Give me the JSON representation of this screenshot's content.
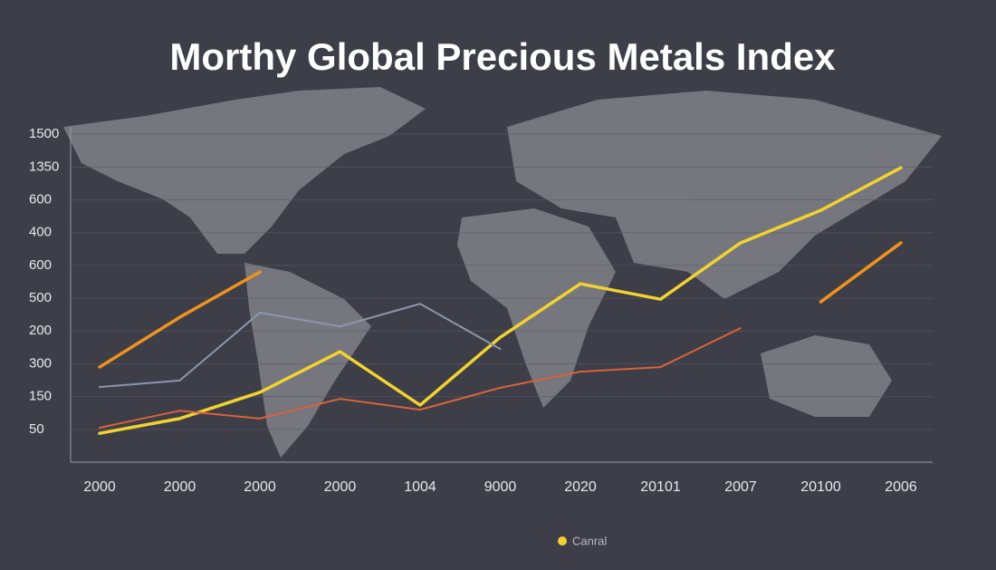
{
  "chart_data": {
    "type": "line",
    "title": "Morthy Global Precious Metals Index",
    "categories": [
      "2000",
      "2000",
      "2000",
      "2000",
      "1004",
      "9000",
      "2020",
      "20101",
      "2007",
      "20100",
      "2006"
    ],
    "ylim": [
      0,
      11
    ],
    "yticks": [
      {
        "value": 1,
        "label": "50"
      },
      {
        "value": 2,
        "label": "150"
      },
      {
        "value": 3,
        "label": "300"
      },
      {
        "value": 4,
        "label": "200"
      },
      {
        "value": 5,
        "label": "500"
      },
      {
        "value": 6,
        "label": "600"
      },
      {
        "value": 7,
        "label": "400"
      },
      {
        "value": 8,
        "label": "600"
      },
      {
        "value": 9,
        "label": "1350"
      },
      {
        "value": 10,
        "label": "1500"
      }
    ],
    "grid": true,
    "series": [
      {
        "name": "Canral",
        "color": "#f2d230",
        "values": [
          0.88,
          1.33,
          2.13,
          3.37,
          1.74,
          3.81,
          5.44,
          4.97,
          6.69,
          7.68,
          8.98
        ]
      },
      {
        "color": "#f0921e",
        "values": [
          2.9,
          4.42,
          5.8,
          null,
          null,
          null,
          null,
          null,
          null,
          4.89,
          6.69
        ]
      },
      {
        "color": "#d9623a",
        "values": [
          1.05,
          1.57,
          1.33,
          1.93,
          1.6,
          2.27,
          2.76,
          2.9,
          4.09,
          null,
          null
        ]
      },
      {
        "color": "#8a97ad",
        "values": [
          2.29,
          2.49,
          4.56,
          4.14,
          4.83,
          3.45,
          null,
          null,
          null,
          null,
          null
        ]
      }
    ]
  }
}
